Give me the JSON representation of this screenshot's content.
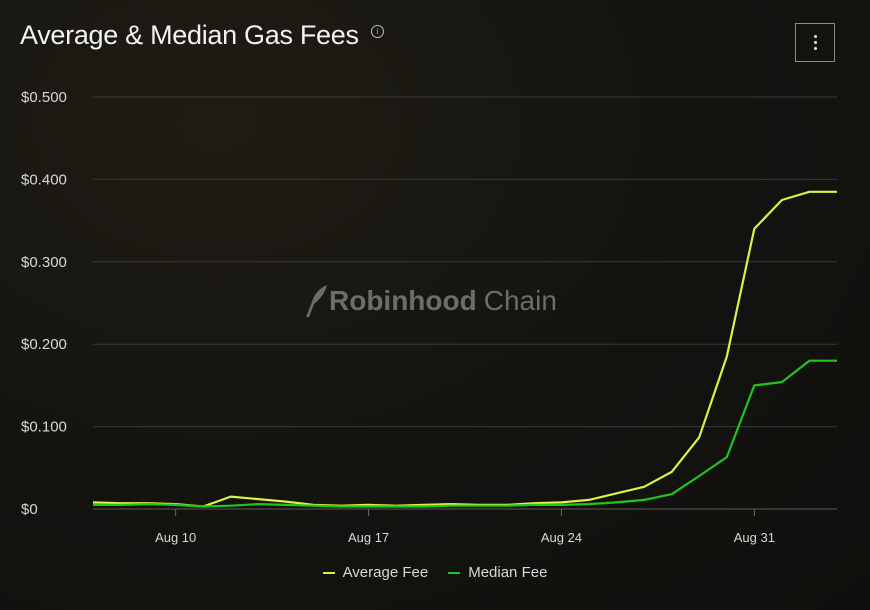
{
  "header": {
    "title": "Average & Median Gas Fees",
    "info_glyph": "i"
  },
  "watermark": {
    "brand_bold": "Robinhood",
    "brand_regular": "Chain",
    "icon": "feather-icon"
  },
  "legend": [
    {
      "label": "Average Fee",
      "color": "#d4f542"
    },
    {
      "label": "Median Fee",
      "color": "#22c51e"
    }
  ],
  "chart_data": {
    "type": "line",
    "x_start": "Aug 7",
    "x_end": "Sep 3",
    "x_ticks": [
      "Aug 10",
      "Aug 17",
      "Aug 24",
      "Aug 31"
    ],
    "y_ticks": [
      "$0",
      "$0.100",
      "$0.200",
      "$0.300",
      "$0.400",
      "$0.500"
    ],
    "ylim": [
      0,
      0.5
    ],
    "grid": true,
    "legend_position": "bottom",
    "x": [
      "Aug 7",
      "Aug 8",
      "Aug 9",
      "Aug 10",
      "Aug 11",
      "Aug 12",
      "Aug 13",
      "Aug 14",
      "Aug 15",
      "Aug 16",
      "Aug 17",
      "Aug 18",
      "Aug 19",
      "Aug 20",
      "Aug 21",
      "Aug 22",
      "Aug 23",
      "Aug 24",
      "Aug 25",
      "Aug 26",
      "Aug 27",
      "Aug 28",
      "Aug 29",
      "Aug 30",
      "Aug 31",
      "Sep 1",
      "Sep 2",
      "Sep 3"
    ],
    "series": [
      {
        "name": "Average Fee",
        "color": "#d4f542",
        "values": [
          0.008,
          0.007,
          0.007,
          0.006,
          0.003,
          0.015,
          0.012,
          0.009,
          0.005,
          0.004,
          0.005,
          0.004,
          0.005,
          0.006,
          0.005,
          0.005,
          0.007,
          0.008,
          0.011,
          0.019,
          0.027,
          0.045,
          0.087,
          0.185,
          0.34,
          0.375,
          0.385,
          0.385
        ]
      },
      {
        "name": "Median Fee",
        "color": "#22c51e",
        "values": [
          0.005,
          0.005,
          0.006,
          0.005,
          0.003,
          0.004,
          0.006,
          0.005,
          0.004,
          0.003,
          0.003,
          0.003,
          0.003,
          0.004,
          0.004,
          0.004,
          0.005,
          0.005,
          0.006,
          0.008,
          0.011,
          0.018,
          0.04,
          0.063,
          0.15,
          0.154,
          0.18,
          0.18
        ]
      }
    ]
  }
}
